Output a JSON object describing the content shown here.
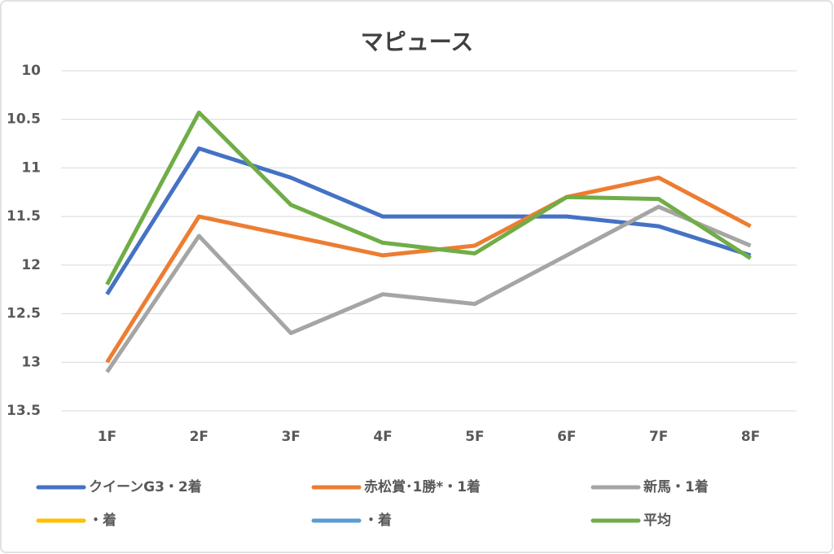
{
  "chart_data": {
    "type": "line",
    "title": "マピュース",
    "categories": [
      "1F",
      "2F",
      "3F",
      "4F",
      "5F",
      "6F",
      "7F",
      "8F"
    ],
    "series": [
      {
        "name": "クイーンG3・2着",
        "color": "#4472c4",
        "values": [
          12.3,
          10.8,
          11.1,
          11.5,
          11.5,
          11.5,
          11.6,
          11.9
        ]
      },
      {
        "name": "赤松賞･1勝*・1着",
        "color": "#ed7d31",
        "values": [
          13.0,
          11.5,
          11.7,
          11.9,
          11.8,
          11.3,
          11.1,
          11.6
        ]
      },
      {
        "name": "新馬・1着",
        "color": "#a5a5a5",
        "values": [
          13.1,
          11.7,
          12.7,
          12.3,
          12.4,
          11.9,
          11.4,
          11.8
        ]
      },
      {
        "name": "・着",
        "color": "#ffc000",
        "values": [
          null,
          null,
          null,
          null,
          null,
          null,
          null,
          null
        ]
      },
      {
        "name": "・着",
        "color": "#5b9bd5",
        "values": [
          null,
          null,
          null,
          null,
          null,
          null,
          null,
          null
        ]
      },
      {
        "name": "平均",
        "color": "#70ad47",
        "values": [
          12.2,
          10.43,
          11.38,
          11.77,
          11.88,
          11.3,
          11.32,
          11.93
        ]
      }
    ],
    "ylim": [
      10,
      13.5
    ],
    "y_inverted": true,
    "yticks": [
      10,
      10.5,
      11,
      11.5,
      12,
      12.5,
      13,
      13.5
    ],
    "grid": true,
    "legend": "bottom"
  }
}
